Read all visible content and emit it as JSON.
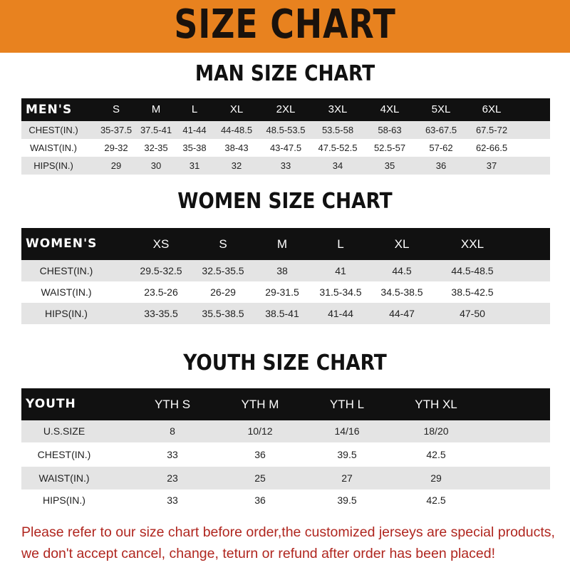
{
  "title": "SIZE CHART",
  "men": {
    "title": "MAN SIZE CHART",
    "header": [
      "MEN'S",
      "S",
      "M",
      "L",
      "XL",
      "2XL",
      "3XL",
      "4XL",
      "5XL",
      "6XL"
    ],
    "rows": [
      [
        "CHEST(IN.)",
        "35-37.5",
        "37.5-41",
        "41-44",
        "44-48.5",
        "48.5-53.5",
        "53.5-58",
        "58-63",
        "63-67.5",
        "67.5-72"
      ],
      [
        "WAIST(IN.)",
        "29-32",
        "32-35",
        "35-38",
        "38-43",
        "43-47.5",
        "47.5-52.5",
        "52.5-57",
        "57-62",
        "62-66.5"
      ],
      [
        "HIPS(IN.)",
        "29",
        "30",
        "31",
        "32",
        "33",
        "34",
        "35",
        "36",
        "37"
      ]
    ]
  },
  "women": {
    "title": "WOMEN SIZE CHART",
    "header": [
      "WOMEN'S",
      "XS",
      "S",
      "M",
      "L",
      "XL",
      "XXL"
    ],
    "rows": [
      [
        "CHEST(IN.)",
        "29.5-32.5",
        "32.5-35.5",
        "38",
        "41",
        "44.5",
        "44.5-48.5"
      ],
      [
        "WAIST(IN.)",
        "23.5-26",
        "26-29",
        "29-31.5",
        "31.5-34.5",
        "34.5-38.5",
        "38.5-42.5"
      ],
      [
        "HIPS(IN.)",
        "33-35.5",
        "35.5-38.5",
        "38.5-41",
        "41-44",
        "44-47",
        "47-50"
      ]
    ]
  },
  "youth": {
    "title": "YOUTH SIZE CHART",
    "header": [
      "YOUTH",
      "YTH S",
      "YTH M",
      "YTH L",
      "YTH XL"
    ],
    "rows": [
      [
        "U.S.SIZE",
        "8",
        "10/12",
        "14/16",
        "18/20"
      ],
      [
        "CHEST(IN.)",
        "33",
        "36",
        "39.5",
        "42.5"
      ],
      [
        "WAIST(IN.)",
        "23",
        "25",
        "27",
        "29"
      ],
      [
        "HIPS(IN.)",
        "33",
        "36",
        "39.5",
        "42.5"
      ]
    ]
  },
  "notice": {
    "line1": "Please refer to our size chart before order,the customized jerseys are special products,",
    "line2": "we don't accept cancel, change, teturn or refund after order has been placed!"
  },
  "colors": {
    "banner": "#e8821f",
    "header_row": "#111111",
    "stripe": "#e4e4e4",
    "notice": "#b0261f"
  }
}
